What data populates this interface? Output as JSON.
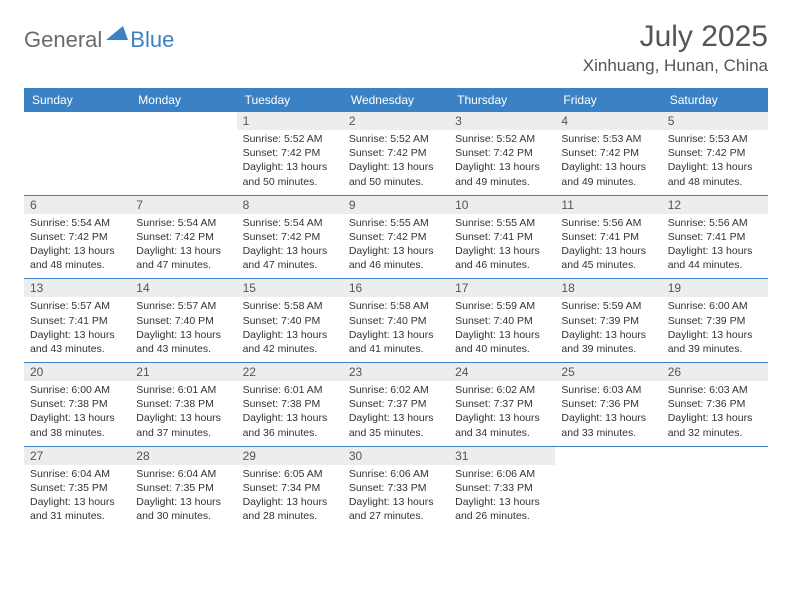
{
  "logo": {
    "text1": "General",
    "text2": "Blue"
  },
  "title": "July 2025",
  "location": "Xinhuang, Hunan, China",
  "colors": {
    "header_bg": "#3b82c4",
    "header_text": "#ffffff",
    "daynum_bg": "#eceded",
    "body_text": "#333333",
    "title_text": "#555555",
    "row_divider": "#3b82c4"
  },
  "day_names": [
    "Sunday",
    "Monday",
    "Tuesday",
    "Wednesday",
    "Thursday",
    "Friday",
    "Saturday"
  ],
  "weeks": [
    [
      {
        "n": "",
        "sr": "",
        "ss": "",
        "dl": ""
      },
      {
        "n": "",
        "sr": "",
        "ss": "",
        "dl": ""
      },
      {
        "n": "1",
        "sr": "5:52 AM",
        "ss": "7:42 PM",
        "dl": "13 hours and 50 minutes."
      },
      {
        "n": "2",
        "sr": "5:52 AM",
        "ss": "7:42 PM",
        "dl": "13 hours and 50 minutes."
      },
      {
        "n": "3",
        "sr": "5:52 AM",
        "ss": "7:42 PM",
        "dl": "13 hours and 49 minutes."
      },
      {
        "n": "4",
        "sr": "5:53 AM",
        "ss": "7:42 PM",
        "dl": "13 hours and 49 minutes."
      },
      {
        "n": "5",
        "sr": "5:53 AM",
        "ss": "7:42 PM",
        "dl": "13 hours and 48 minutes."
      }
    ],
    [
      {
        "n": "6",
        "sr": "5:54 AM",
        "ss": "7:42 PM",
        "dl": "13 hours and 48 minutes."
      },
      {
        "n": "7",
        "sr": "5:54 AM",
        "ss": "7:42 PM",
        "dl": "13 hours and 47 minutes."
      },
      {
        "n": "8",
        "sr": "5:54 AM",
        "ss": "7:42 PM",
        "dl": "13 hours and 47 minutes."
      },
      {
        "n": "9",
        "sr": "5:55 AM",
        "ss": "7:42 PM",
        "dl": "13 hours and 46 minutes."
      },
      {
        "n": "10",
        "sr": "5:55 AM",
        "ss": "7:41 PM",
        "dl": "13 hours and 46 minutes."
      },
      {
        "n": "11",
        "sr": "5:56 AM",
        "ss": "7:41 PM",
        "dl": "13 hours and 45 minutes."
      },
      {
        "n": "12",
        "sr": "5:56 AM",
        "ss": "7:41 PM",
        "dl": "13 hours and 44 minutes."
      }
    ],
    [
      {
        "n": "13",
        "sr": "5:57 AM",
        "ss": "7:41 PM",
        "dl": "13 hours and 43 minutes."
      },
      {
        "n": "14",
        "sr": "5:57 AM",
        "ss": "7:40 PM",
        "dl": "13 hours and 43 minutes."
      },
      {
        "n": "15",
        "sr": "5:58 AM",
        "ss": "7:40 PM",
        "dl": "13 hours and 42 minutes."
      },
      {
        "n": "16",
        "sr": "5:58 AM",
        "ss": "7:40 PM",
        "dl": "13 hours and 41 minutes."
      },
      {
        "n": "17",
        "sr": "5:59 AM",
        "ss": "7:40 PM",
        "dl": "13 hours and 40 minutes."
      },
      {
        "n": "18",
        "sr": "5:59 AM",
        "ss": "7:39 PM",
        "dl": "13 hours and 39 minutes."
      },
      {
        "n": "19",
        "sr": "6:00 AM",
        "ss": "7:39 PM",
        "dl": "13 hours and 39 minutes."
      }
    ],
    [
      {
        "n": "20",
        "sr": "6:00 AM",
        "ss": "7:38 PM",
        "dl": "13 hours and 38 minutes."
      },
      {
        "n": "21",
        "sr": "6:01 AM",
        "ss": "7:38 PM",
        "dl": "13 hours and 37 minutes."
      },
      {
        "n": "22",
        "sr": "6:01 AM",
        "ss": "7:38 PM",
        "dl": "13 hours and 36 minutes."
      },
      {
        "n": "23",
        "sr": "6:02 AM",
        "ss": "7:37 PM",
        "dl": "13 hours and 35 minutes."
      },
      {
        "n": "24",
        "sr": "6:02 AM",
        "ss": "7:37 PM",
        "dl": "13 hours and 34 minutes."
      },
      {
        "n": "25",
        "sr": "6:03 AM",
        "ss": "7:36 PM",
        "dl": "13 hours and 33 minutes."
      },
      {
        "n": "26",
        "sr": "6:03 AM",
        "ss": "7:36 PM",
        "dl": "13 hours and 32 minutes."
      }
    ],
    [
      {
        "n": "27",
        "sr": "6:04 AM",
        "ss": "7:35 PM",
        "dl": "13 hours and 31 minutes."
      },
      {
        "n": "28",
        "sr": "6:04 AM",
        "ss": "7:35 PM",
        "dl": "13 hours and 30 minutes."
      },
      {
        "n": "29",
        "sr": "6:05 AM",
        "ss": "7:34 PM",
        "dl": "13 hours and 28 minutes."
      },
      {
        "n": "30",
        "sr": "6:06 AM",
        "ss": "7:33 PM",
        "dl": "13 hours and 27 minutes."
      },
      {
        "n": "31",
        "sr": "6:06 AM",
        "ss": "7:33 PM",
        "dl": "13 hours and 26 minutes."
      },
      {
        "n": "",
        "sr": "",
        "ss": "",
        "dl": ""
      },
      {
        "n": "",
        "sr": "",
        "ss": "",
        "dl": ""
      }
    ]
  ],
  "labels": {
    "sunrise": "Sunrise:",
    "sunset": "Sunset:",
    "daylight": "Daylight:"
  }
}
